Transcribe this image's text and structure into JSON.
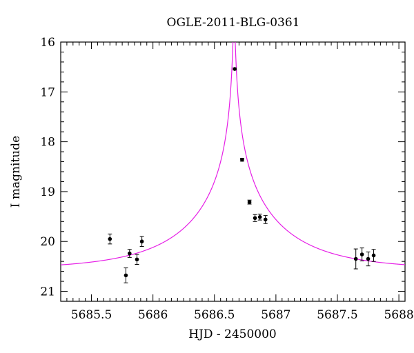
{
  "chart_data": {
    "type": "scatter",
    "title": "OGLE-2011-BLG-0361",
    "xlabel": "HJD - 2450000",
    "ylabel": "I magnitude",
    "xlim": [
      5685.25,
      5688.05
    ],
    "ylim": [
      16.0,
      21.2
    ],
    "y_inverted": true,
    "x_ticks": [
      5685.5,
      5686,
      5686.5,
      5687,
      5687.5,
      5688
    ],
    "x_tick_labels": [
      "5685.5",
      "5686",
      "5686.5",
      "5687",
      "5687.5",
      "5688"
    ],
    "y_ticks": [
      16,
      17,
      18,
      19,
      20,
      21
    ],
    "y_tick_labels": [
      "16",
      "17",
      "18",
      "19",
      "20",
      "21"
    ],
    "grid": false,
    "series": [
      {
        "kind": "points_with_errors",
        "color": "#000000",
        "points": [
          {
            "x": 5685.65,
            "y": 19.95,
            "err": 0.1
          },
          {
            "x": 5685.78,
            "y": 20.68,
            "err": 0.15
          },
          {
            "x": 5685.81,
            "y": 20.24,
            "err": 0.08
          },
          {
            "x": 5685.87,
            "y": 20.36,
            "err": 0.1
          },
          {
            "x": 5685.91,
            "y": 20.0,
            "err": 0.1
          },
          {
            "x": 5686.665,
            "y": 16.54,
            "err": 0.02
          },
          {
            "x": 5686.725,
            "y": 18.36,
            "err": 0.03
          },
          {
            "x": 5686.785,
            "y": 19.21,
            "err": 0.04
          },
          {
            "x": 5686.83,
            "y": 19.53,
            "err": 0.07
          },
          {
            "x": 5686.87,
            "y": 19.51,
            "err": 0.06
          },
          {
            "x": 5686.915,
            "y": 19.56,
            "err": 0.08
          },
          {
            "x": 5687.65,
            "y": 20.35,
            "err": 0.2
          },
          {
            "x": 5687.7,
            "y": 20.26,
            "err": 0.13
          },
          {
            "x": 5687.75,
            "y": 20.35,
            "err": 0.14
          },
          {
            "x": 5687.795,
            "y": 20.28,
            "err": 0.12
          }
        ]
      },
      {
        "kind": "model_curve",
        "color": "#e61ee6",
        "model": {
          "t0": 5686.66,
          "tE": 0.8,
          "u0": 0.0096,
          "baseline_mag": 20.56
        }
      }
    ]
  }
}
